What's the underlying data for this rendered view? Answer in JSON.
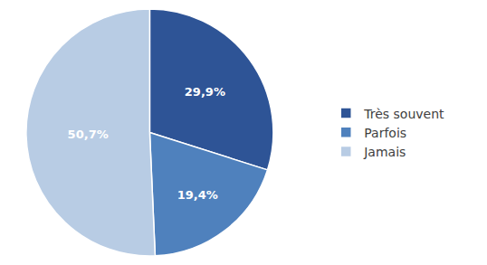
{
  "chart_data": {
    "type": "pie",
    "categories": [
      "Très souvent",
      "Parfois",
      "Jamais"
    ],
    "values": [
      29.9,
      19.4,
      50.7
    ],
    "value_labels": [
      "29,9%",
      "19,4%",
      "50,7%"
    ],
    "colors": [
      "#2E5496",
      "#4F81BD",
      "#B8CCE4"
    ],
    "data_labels": true,
    "legend": "right"
  }
}
